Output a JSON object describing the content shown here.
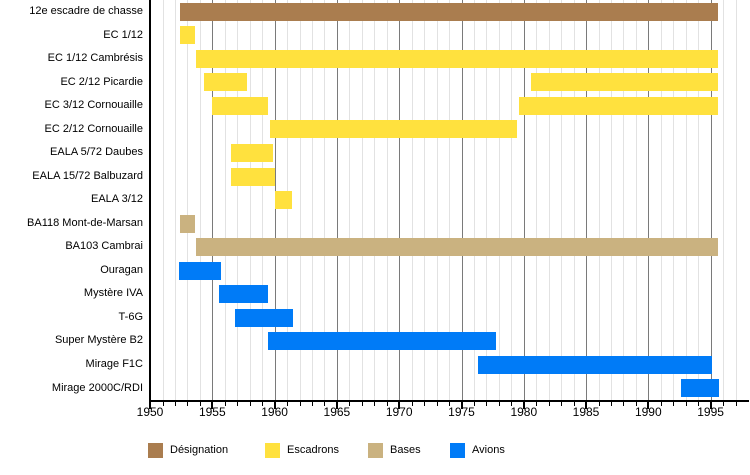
{
  "chart_data": {
    "type": "bar",
    "subtype": "timeline-gantt",
    "title": "",
    "x_axis": {
      "min": 1950,
      "max": 1998,
      "major_interval": 5,
      "minor_interval": 1,
      "tick_labels": [
        "1950",
        "1955",
        "1960",
        "1965",
        "1970",
        "1975",
        "1980",
        "1985",
        "1990",
        "1995"
      ],
      "grid": true
    },
    "colors": {
      "designation": "#AA7D4F",
      "escadron": "#FFE13E",
      "base": "#CAB280",
      "avion": "#007BF7"
    },
    "rows": [
      {
        "label": "12e escadre de chasse",
        "category": "designation",
        "spans": [
          [
            1952.4,
            1995.6
          ]
        ]
      },
      {
        "label": "EC 1/12",
        "category": "escadron",
        "spans": [
          [
            1952.4,
            1953.6
          ]
        ]
      },
      {
        "label": "EC 1/12 Cambrésis",
        "category": "escadron",
        "spans": [
          [
            1953.7,
            1995.6
          ]
        ]
      },
      {
        "label": "EC 2/12 Picardie",
        "category": "escadron",
        "spans": [
          [
            1954.3,
            1957.8
          ],
          [
            1980.6,
            1995.6
          ]
        ]
      },
      {
        "label": "EC 3/12 Cornouaille",
        "category": "escadron",
        "spans": [
          [
            1955.0,
            1959.5
          ],
          [
            1979.6,
            1995.6
          ]
        ]
      },
      {
        "label": "EC 2/12 Cornouaille",
        "category": "escadron",
        "spans": [
          [
            1959.6,
            1979.5
          ]
        ]
      },
      {
        "label": "EALA 5/72 Daubes",
        "category": "escadron",
        "spans": [
          [
            1956.5,
            1959.9
          ]
        ]
      },
      {
        "label": "EALA 15/72 Balbuzard",
        "category": "escadron",
        "spans": [
          [
            1956.5,
            1960.0
          ]
        ]
      },
      {
        "label": "EALA 3/12",
        "category": "escadron",
        "spans": [
          [
            1960.0,
            1961.4
          ]
        ]
      },
      {
        "label": "BA118 Mont-de-Marsan",
        "category": "base",
        "spans": [
          [
            1952.4,
            1953.6
          ]
        ]
      },
      {
        "label": "BA103 Cambrai",
        "category": "base",
        "spans": [
          [
            1953.7,
            1995.6
          ]
        ]
      },
      {
        "label": "Ouragan",
        "category": "avion",
        "spans": [
          [
            1952.3,
            1955.7
          ]
        ]
      },
      {
        "label": "Mystère IVA",
        "category": "avion",
        "spans": [
          [
            1955.5,
            1959.5
          ]
        ]
      },
      {
        "label": "T-6G",
        "category": "avion",
        "spans": [
          [
            1956.8,
            1961.5
          ]
        ]
      },
      {
        "label": "Super Mystère B2",
        "category": "avion",
        "spans": [
          [
            1959.5,
            1977.8
          ]
        ]
      },
      {
        "label": "Mirage F1C",
        "category": "avion",
        "spans": [
          [
            1976.3,
            1995.1
          ]
        ]
      },
      {
        "label": "Mirage 2000C/RDI",
        "category": "avion",
        "spans": [
          [
            1992.6,
            1995.7
          ]
        ]
      }
    ],
    "legend": [
      {
        "label": "Désignation",
        "category": "designation"
      },
      {
        "label": "Escadrons",
        "category": "escadron"
      },
      {
        "label": "Bases",
        "category": "base"
      },
      {
        "label": "Avions",
        "category": "avion"
      }
    ],
    "legend_position": "bottom"
  }
}
